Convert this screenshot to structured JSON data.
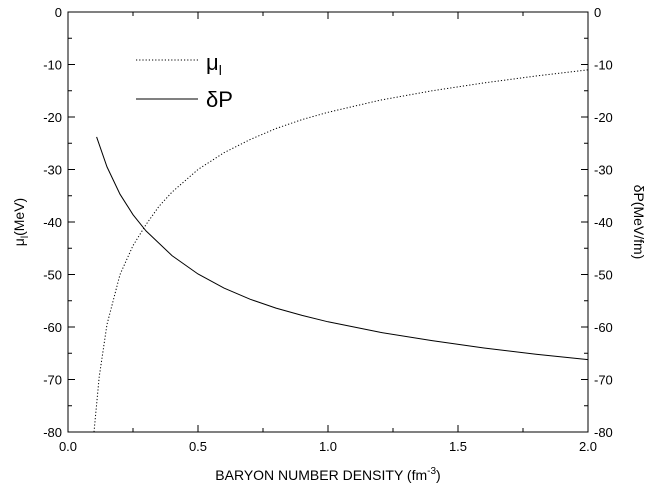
{
  "chart_data": {
    "type": "line",
    "xlabel": "BARYON NUMBER DENSITY (fm",
    "xlabel_sup": "-3",
    "xlabel_end": ")",
    "ylabel_left": "μl(MeV)",
    "ylabel_left_main": "μ",
    "ylabel_left_sub": "l",
    "ylabel_left_end": "(MeV)",
    "ylabel_right": "δP(MeV/fm)",
    "xlim": [
      0.0,
      2.0
    ],
    "ylim_left": [
      -80,
      0
    ],
    "ylim_right": [
      -80,
      0
    ],
    "x_ticks": [
      0.0,
      0.5,
      1.0,
      1.5,
      2.0
    ],
    "x_tick_labels": [
      "0.0",
      "0.5",
      "1.0",
      "1.5",
      "2.0"
    ],
    "y_ticks_left": [
      0,
      -10,
      -20,
      -30,
      -40,
      -50,
      -60,
      -70,
      -80
    ],
    "y_tick_labels_left": [
      "0",
      "-10",
      "-20",
      "-30",
      "-40",
      "-50",
      "-60",
      "-70",
      "-80"
    ],
    "y_ticks_right": [
      0,
      -10,
      -20,
      -30,
      -40,
      -50,
      -60,
      -70,
      -80
    ],
    "y_tick_labels_right": [
      "0",
      "-10",
      "-20",
      "-30",
      "-40",
      "-50",
      "-60",
      "-70",
      "-80"
    ],
    "grid": false,
    "legend_position": "top-left",
    "series": [
      {
        "name": "μl",
        "name_main": "μ",
        "name_sub": "l",
        "style": "dotted",
        "axis": "left",
        "x": [
          0.1,
          0.12,
          0.15,
          0.2,
          0.25,
          0.3,
          0.35,
          0.4,
          0.5,
          0.6,
          0.7,
          0.8,
          0.9,
          1.0,
          1.2,
          1.4,
          1.6,
          1.8,
          2.0
        ],
        "y": [
          -80.0,
          -69.5,
          -59.5,
          -50.0,
          -44.5,
          -40.5,
          -37.0,
          -34.3,
          -30.0,
          -26.8,
          -24.3,
          -22.2,
          -20.5,
          -19.1,
          -16.8,
          -15.0,
          -13.5,
          -12.2,
          -11.0
        ]
      },
      {
        "name": "δP",
        "style": "solid",
        "axis": "right",
        "x": [
          0.11,
          0.15,
          0.2,
          0.25,
          0.3,
          0.4,
          0.5,
          0.6,
          0.7,
          0.8,
          0.9,
          1.0,
          1.2,
          1.4,
          1.6,
          1.8,
          2.0
        ],
        "y": [
          -23.8,
          -29.5,
          -34.7,
          -38.6,
          -41.7,
          -46.4,
          -49.9,
          -52.6,
          -54.7,
          -56.4,
          -57.8,
          -59.0,
          -61.0,
          -62.6,
          -64.0,
          -65.2,
          -66.2
        ]
      }
    ]
  }
}
